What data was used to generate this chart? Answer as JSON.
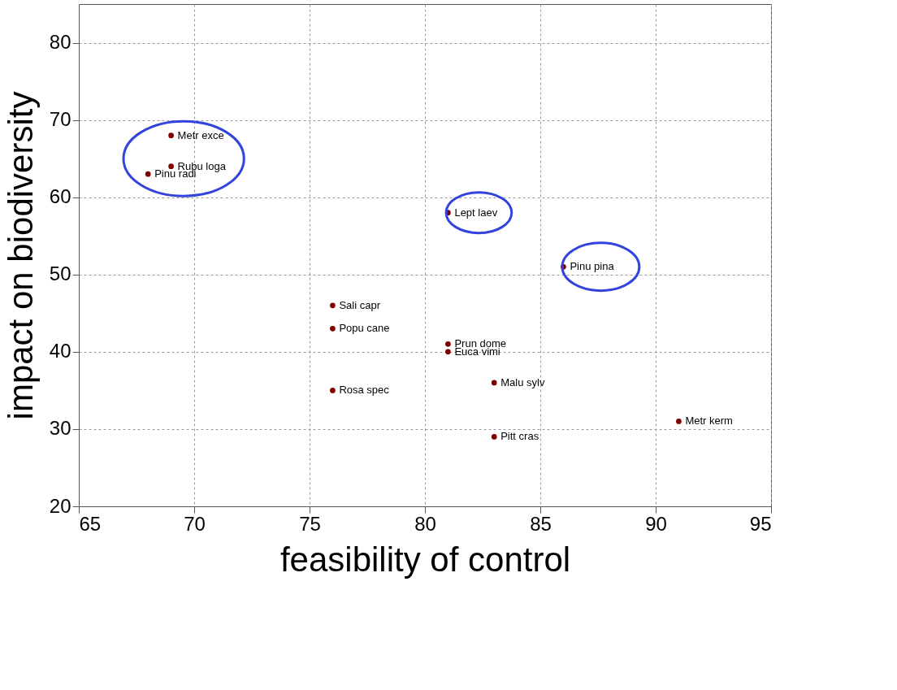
{
  "chart_data": {
    "type": "scatter",
    "xlabel": "feasibility of control",
    "ylabel": "impact on biodiversity",
    "x": [
      69,
      69,
      68,
      81,
      86,
      76,
      76,
      81,
      81,
      83,
      76,
      91,
      83
    ],
    "series": [
      {
        "color": "#800000",
        "values": [
          68,
          64,
          63,
          58,
          51,
          46,
          43,
          41,
          40,
          36,
          35,
          31,
          29
        ]
      }
    ],
    "annotations": [
      {
        "text": "Metr exce",
        "x": 69,
        "y": 68
      },
      {
        "text": "Rubu loga",
        "x": 69,
        "y": 64
      },
      {
        "text": "Pinu radi",
        "x": 68,
        "y": 63
      },
      {
        "text": "Lept laev",
        "x": 81,
        "y": 58
      },
      {
        "text": "Pinu pina",
        "x": 86,
        "y": 51
      },
      {
        "text": "Sali capr",
        "x": 76,
        "y": 46
      },
      {
        "text": "Popu cane",
        "x": 76,
        "y": 43
      },
      {
        "text": "Prun dome",
        "x": 81,
        "y": 41
      },
      {
        "text": "Euca vimi",
        "x": 81,
        "y": 40
      },
      {
        "text": "Malu sylv",
        "x": 83,
        "y": 36
      },
      {
        "text": "Rosa spec",
        "x": 76,
        "y": 35
      },
      {
        "text": "Metr kerm",
        "x": 91,
        "y": 31
      },
      {
        "text": "Pitt cras",
        "x": 83,
        "y": 29
      }
    ],
    "xlim": [
      65,
      95
    ],
    "xticks": [
      65,
      70,
      75,
      80,
      85,
      90,
      95
    ],
    "ylim": [
      20,
      85
    ],
    "yticks": [
      20,
      30,
      40,
      50,
      60,
      70,
      80
    ],
    "grid": true,
    "marker": "circle"
  }
}
